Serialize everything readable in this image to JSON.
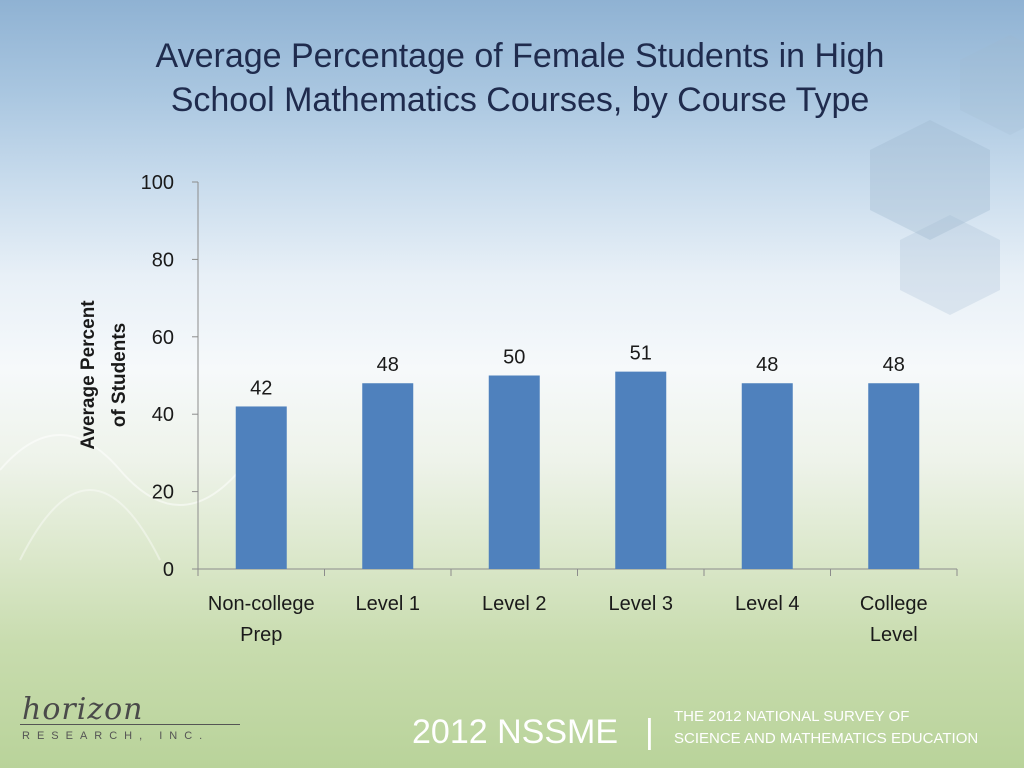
{
  "slide": {
    "title_line1": "Average Percentage of Female Students in High",
    "title_line2": "School Mathematics Courses, by Course Type"
  },
  "chart_data": {
    "type": "bar",
    "categories": [
      [
        "Non-college",
        "Prep"
      ],
      [
        "Level 1"
      ],
      [
        "Level 2"
      ],
      [
        "Level 3"
      ],
      [
        "Level 4"
      ],
      [
        "College",
        "Level"
      ]
    ],
    "values": [
      42,
      48,
      50,
      51,
      48,
      48
    ],
    "data_labels": [
      "42",
      "48",
      "50",
      "51",
      "48",
      "48"
    ],
    "ylabel_lines": [
      "Average Percent",
      "of Students"
    ],
    "ylim": [
      0,
      100
    ],
    "yticks": [
      0,
      20,
      40,
      60,
      80,
      100
    ],
    "grid": false,
    "legend": "none",
    "bar_color": "#4f81bd"
  },
  "footer": {
    "logo_word": "horizon",
    "logo_sub": "RESEARCH, INC.",
    "survey_label": "2012 NSSME",
    "separator": "|",
    "survey_desc_line1": "THE 2012 NATIONAL SURVEY OF",
    "survey_desc_line2": "SCIENCE AND MATHEMATICS EDUCATION"
  }
}
